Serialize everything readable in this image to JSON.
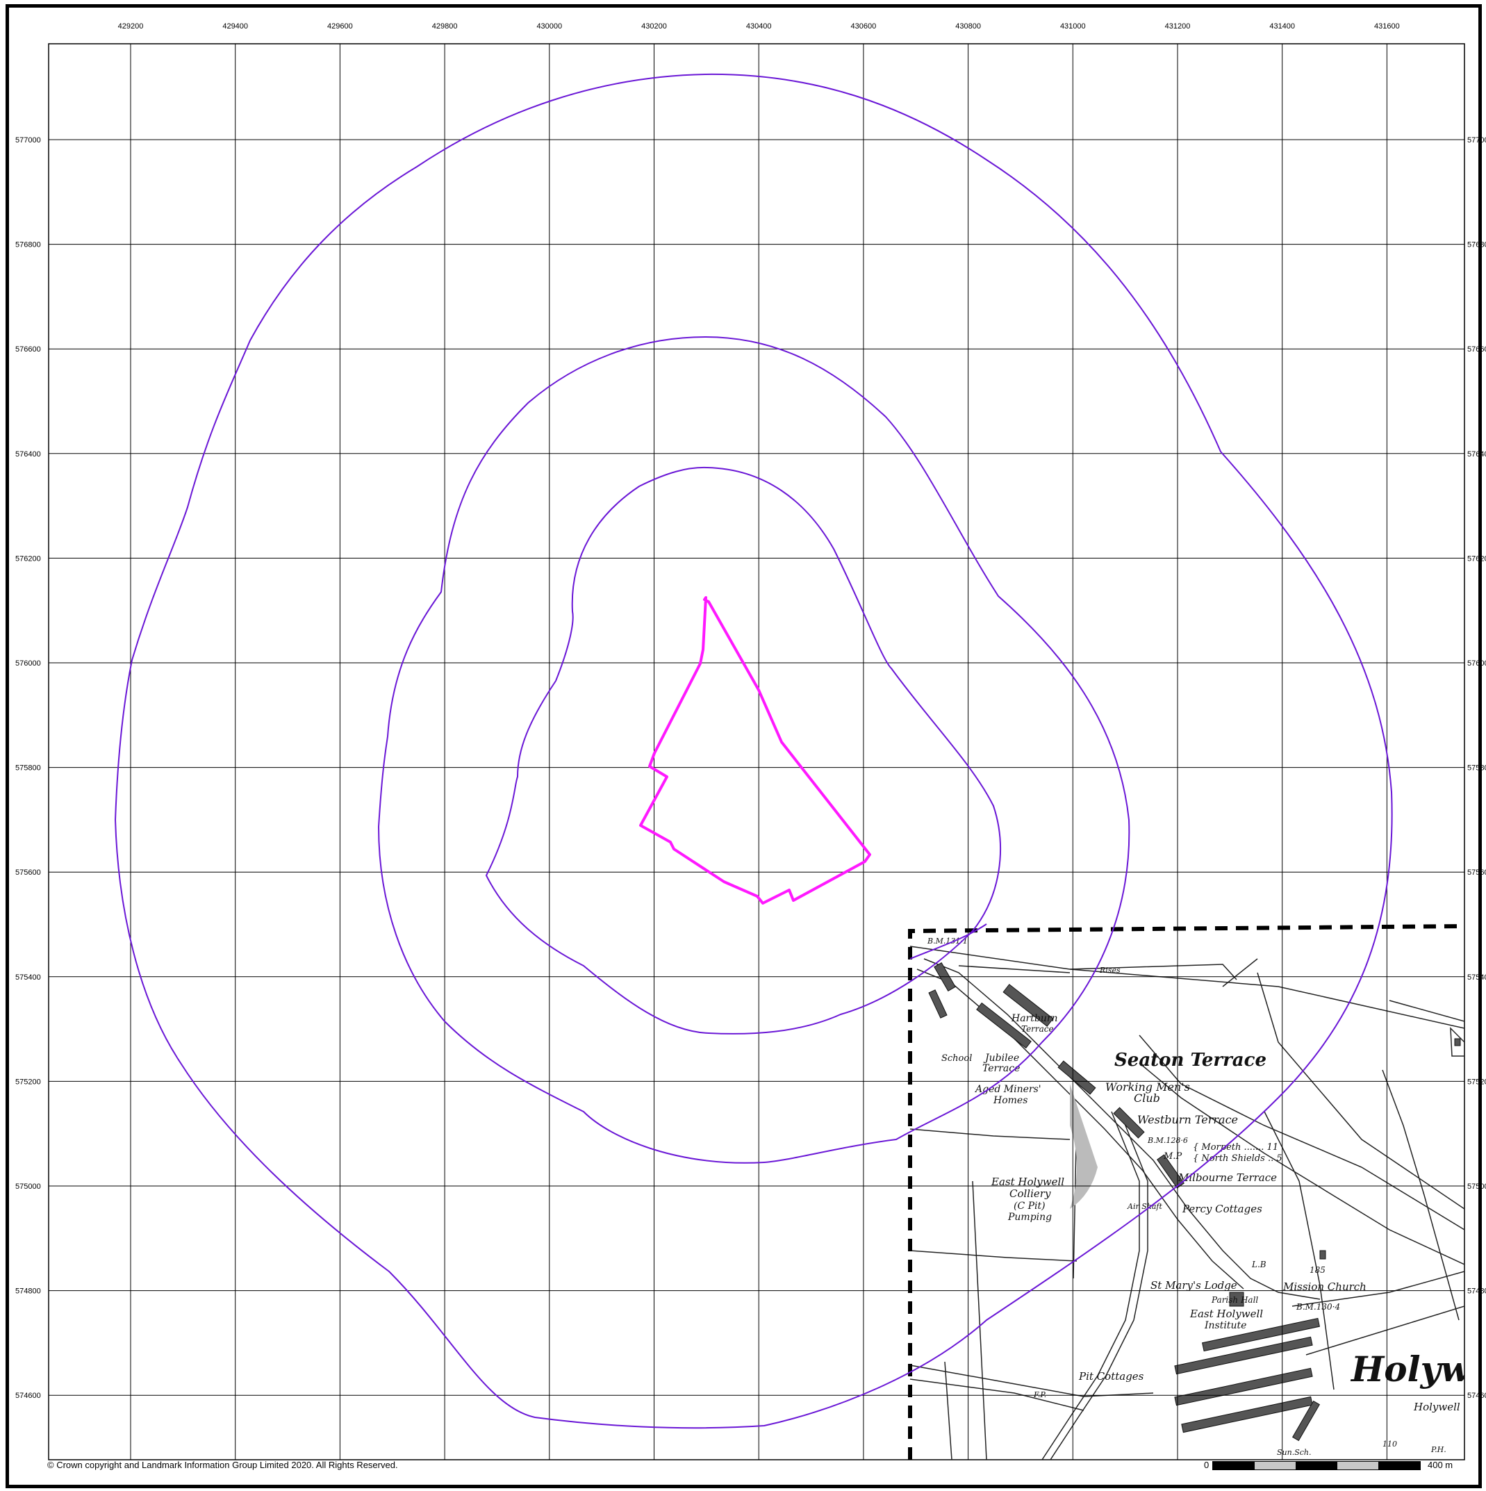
{
  "map": {
    "copyright": "© Crown copyright and Landmark Information Group Limited 2020.  All Rights Reserved.",
    "scale_bar": {
      "start_label": "0",
      "end_label": "400 m",
      "length_m": 400
    },
    "colors": {
      "buffer_rings": "#6a17d6",
      "site_boundary": "#ff19ff",
      "extract_boundary": "#000000",
      "grid": "#000000"
    },
    "easting_ticks": [
      "429200",
      "429400",
      "429600",
      "429800",
      "430000",
      "430200",
      "430400",
      "430600",
      "430800",
      "431000",
      "431200",
      "431400",
      "431600"
    ],
    "northing_ticks": [
      "577000",
      "576800",
      "576600",
      "576400",
      "576200",
      "576000",
      "575800",
      "575600",
      "575400",
      "575200",
      "575000",
      "574800",
      "574600"
    ],
    "buffer_rings": [
      "inner",
      "middle",
      "outer"
    ],
    "historic_map_labels": [
      "B.M.131·1",
      "Rises",
      "Hartburn",
      "Terrace",
      "Seaton Terrace",
      "School",
      "Jubilee",
      "Terrace",
      "Aged Miners'",
      "Homes",
      "Working Men's",
      "Club",
      "Westburn Terrace",
      "B.M.128·6",
      "M.P",
      "{ Morpeth ....... 11",
      "{ North Shields .. 5",
      "Milbourne Terrace",
      "East Holywell",
      "Colliery",
      "(C Pit)",
      "Pumping",
      "Air Shaft",
      "Percy Cottages",
      "L.B",
      "185",
      "St Mary's Lodge",
      "Mission Church",
      "Parish Hall",
      "B.M.130·4",
      "East Holywell",
      "Institute",
      "Pit Cottages",
      "F.P.",
      "Holyw",
      "Holywell",
      "Sun.Sch.",
      "110",
      "P.H."
    ]
  }
}
